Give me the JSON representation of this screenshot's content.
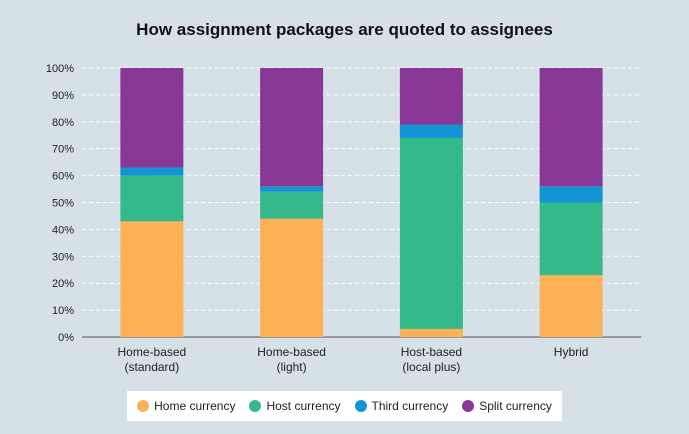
{
  "chart_data": {
    "type": "bar",
    "stacked": true,
    "title": "How assignment packages are quoted to assignees",
    "categories": [
      [
        "Home-based",
        "(standard)"
      ],
      [
        "Home-based",
        "(light)"
      ],
      [
        "Host-based",
        "(local plus)"
      ],
      [
        "Hybrid"
      ]
    ],
    "series": [
      {
        "name": "Home currency",
        "color": "#fcb157",
        "values": [
          43,
          44,
          3,
          23
        ]
      },
      {
        "name": "Host currency",
        "color": "#36b98a",
        "values": [
          17,
          10,
          71,
          27
        ]
      },
      {
        "name": "Third currency",
        "color": "#1394d4",
        "values": [
          3,
          2,
          5,
          6
        ]
      },
      {
        "name": "Split currency",
        "color": "#8a3896",
        "values": [
          37,
          44,
          21,
          44
        ]
      }
    ],
    "yticks": [
      "0%",
      "10%",
      "20%",
      "30%",
      "40%",
      "50%",
      "60%",
      "70%",
      "80%",
      "90%",
      "100%"
    ],
    "ylim": [
      0,
      100
    ],
    "grid": true,
    "legend": "bottom"
  }
}
